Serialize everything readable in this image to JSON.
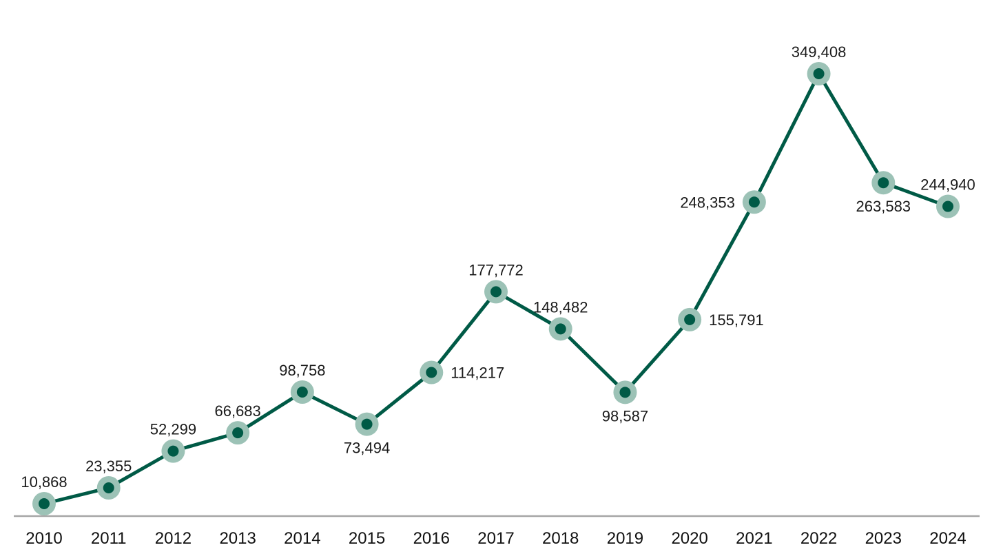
{
  "colors": {
    "line": "#005a46",
    "marker_halo": "#9cc2b6",
    "axis": "#a6a6a6",
    "text": "#1a1a1a"
  },
  "chart_data": {
    "type": "line",
    "title": "",
    "xlabel": "",
    "ylabel": "",
    "x": [
      "2010",
      "2011",
      "2012",
      "2013",
      "2014",
      "2015",
      "2016",
      "2017",
      "2018",
      "2019",
      "2020",
      "2021",
      "2022",
      "2023",
      "2024"
    ],
    "series": [
      {
        "values": [
          10868,
          23355,
          52299,
          66683,
          98758,
          73494,
          114217,
          177772,
          148482,
          98587,
          155791,
          248353,
          349408,
          263583,
          244940
        ]
      }
    ],
    "data_labels": [
      "10,868",
      "23,355",
      "52,299",
      "66,683",
      "98,758",
      "73,494",
      "114,217",
      "177,772",
      "148,482",
      "98,587",
      "155,791",
      "248,353",
      "349,408",
      "263,583",
      "244,940"
    ],
    "ylim": [
      0,
      370000
    ],
    "grid": false,
    "legend": "none",
    "y_axis_visible": false
  }
}
